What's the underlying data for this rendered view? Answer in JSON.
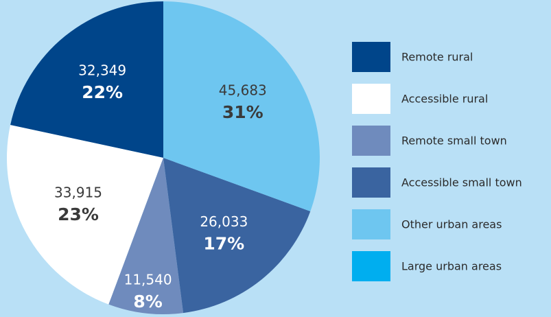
{
  "chart_data": {
    "type": "pie",
    "categories": [
      "Remote rural",
      "Accessible rural",
      "Remote small town",
      "Accessible small town",
      "Other urban areas",
      "Large urban areas"
    ],
    "values": [
      32349,
      33915,
      11540,
      26033,
      45683,
      0
    ],
    "value_labels": [
      "32,349",
      "33,915",
      "11,540",
      "26,033",
      "45,683",
      null
    ],
    "percent_labels": [
      "22%",
      "23%",
      "8%",
      "17%",
      "31%",
      null
    ],
    "colors": [
      "#00458a",
      "#ffffff",
      "#6f8bbd",
      "#3a64a0",
      "#6ec6f0",
      "#00aeef"
    ],
    "direction": "counterclockwise",
    "legend": "right"
  }
}
